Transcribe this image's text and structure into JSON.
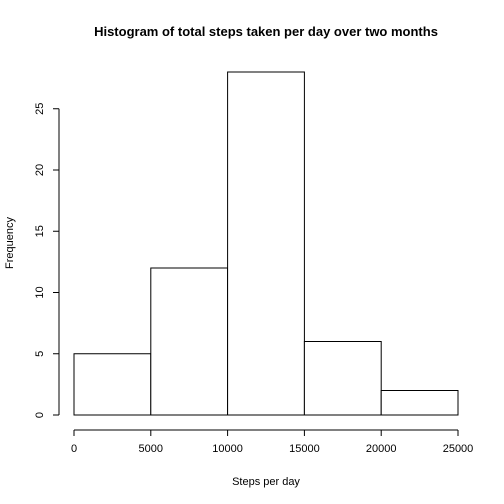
{
  "chart_data": {
    "type": "bar",
    "title": "Histogram of total steps taken per day over two months",
    "xlabel": "Steps per day",
    "ylabel": "Frequency",
    "bins": [
      {
        "from": 0,
        "to": 5000,
        "count": 5
      },
      {
        "from": 5000,
        "to": 10000,
        "count": 12
      },
      {
        "from": 10000,
        "to": 15000,
        "count": 28
      },
      {
        "from": 15000,
        "to": 20000,
        "count": 6
      },
      {
        "from": 20000,
        "to": 25000,
        "count": 2
      }
    ],
    "xlim": [
      0,
      25000
    ],
    "ylim": [
      0,
      28
    ],
    "x_ticks": [
      0,
      5000,
      10000,
      15000,
      20000,
      25000
    ],
    "x_tick_labels": [
      "0",
      "5000",
      "10000",
      "15000",
      "20000",
      "25000"
    ],
    "y_ticks": [
      0,
      5,
      10,
      15,
      20,
      25
    ],
    "y_tick_labels": [
      "0",
      "5",
      "10",
      "15",
      "20",
      "25"
    ],
    "grid": false,
    "legend": "none",
    "colors": {
      "bar_fill": "#ffffff",
      "bar_stroke": "#000000",
      "axis": "#000000"
    }
  }
}
